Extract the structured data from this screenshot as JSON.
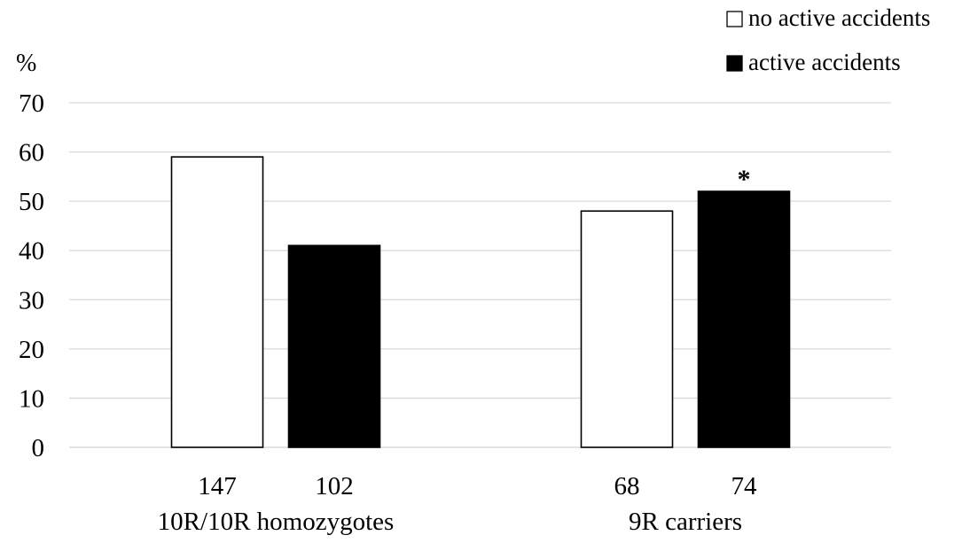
{
  "chart_data": {
    "type": "bar",
    "ylabel": "%",
    "ylim": [
      0,
      70
    ],
    "yticks": [
      0,
      10,
      20,
      30,
      40,
      50,
      60,
      70
    ],
    "grid": true,
    "legend_position": "top-right",
    "categories": [
      "10R/10R homozygotes",
      "9R carriers"
    ],
    "series": [
      {
        "name": "no active accidents",
        "values": [
          59,
          48
        ],
        "n": [
          "147",
          "68"
        ],
        "color": "#ffffff"
      },
      {
        "name": "active accidents",
        "values": [
          41,
          52
        ],
        "n": [
          "102",
          "74"
        ],
        "color": "#000000"
      }
    ],
    "annotations": [
      {
        "text": "*",
        "category": "9R carriers",
        "series": "active accidents"
      }
    ]
  }
}
